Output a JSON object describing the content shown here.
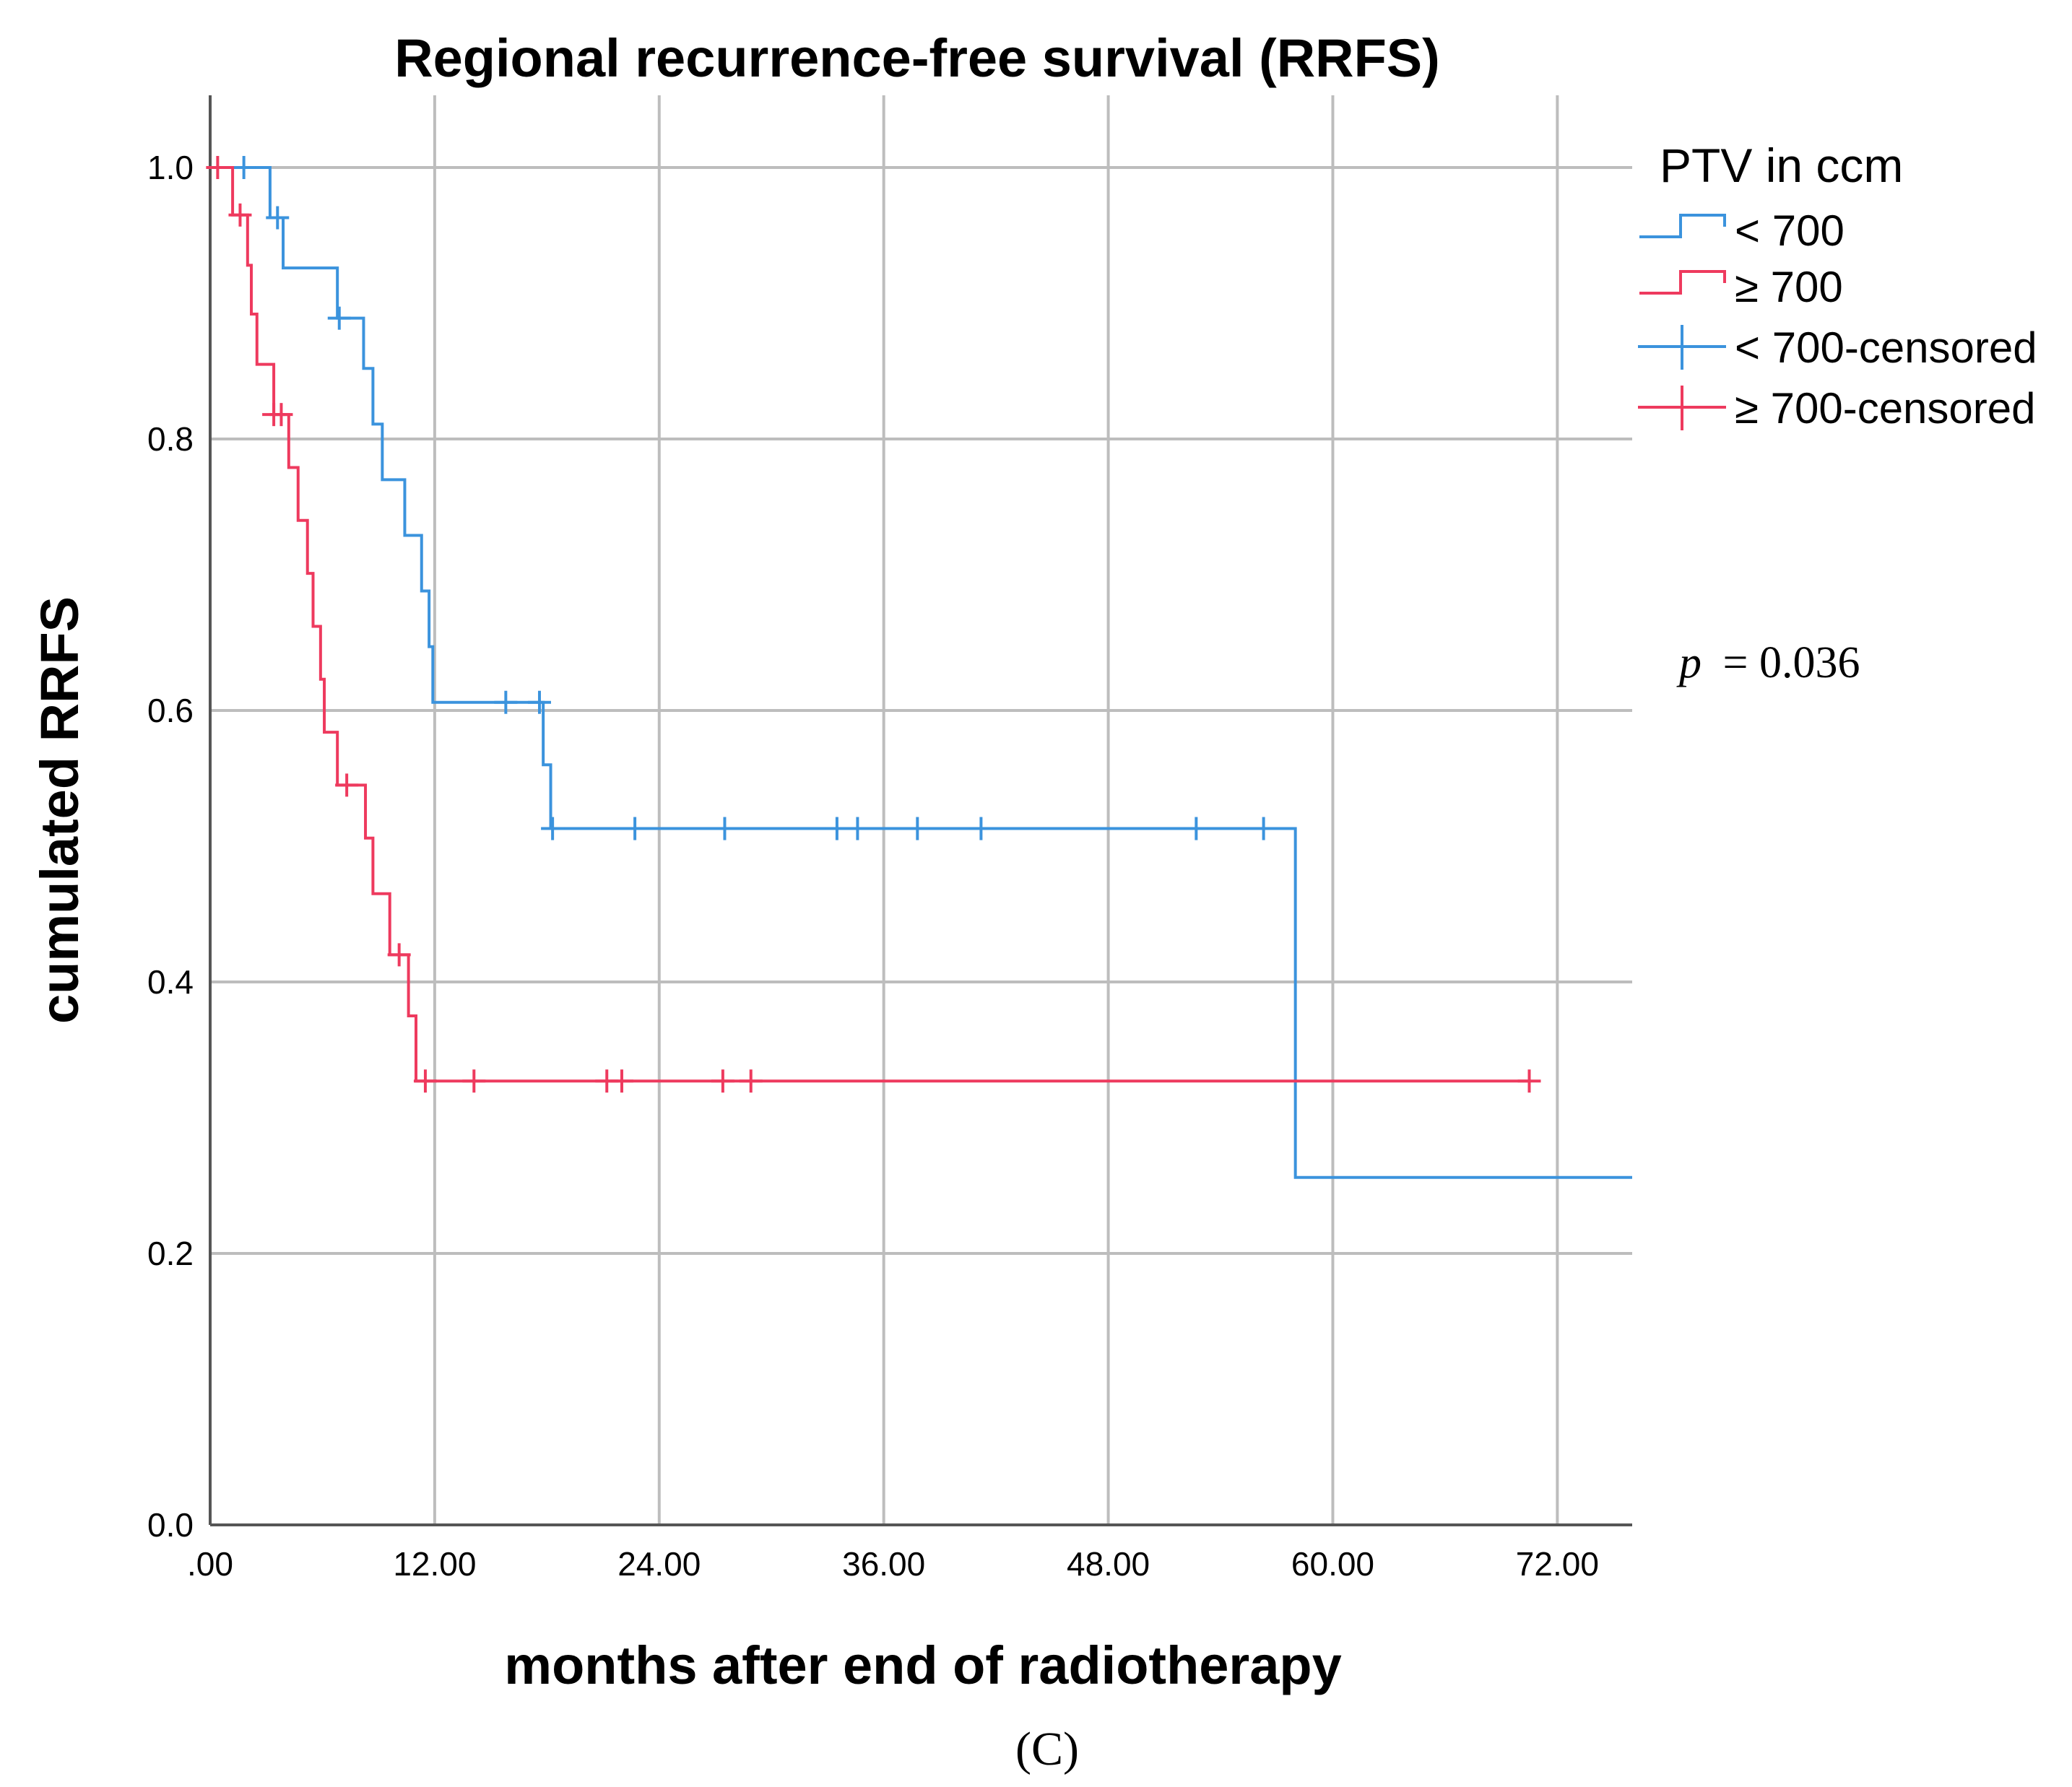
{
  "chart_data": {
    "type": "line",
    "subtype": "kaplan-meier step",
    "title": "Regional recurrence-free survival (RRFS)",
    "xlabel": "months after end of radiotherapy",
    "ylabel": "cumulated RRFS",
    "xlim": [
      0,
      76
    ],
    "ylim": [
      0,
      1.05
    ],
    "x_ticks": [
      0,
      12,
      24,
      36,
      48,
      60,
      72
    ],
    "x_tick_labels": [
      ".00",
      "12.00",
      "24.00",
      "36.00",
      "48.00",
      "60.00",
      "72.00"
    ],
    "y_ticks": [
      0.0,
      0.2,
      0.4,
      0.6,
      0.8,
      1.0
    ],
    "y_tick_labels": [
      "0.0",
      "0.2",
      "0.4",
      "0.6",
      "0.8",
      "1.0"
    ],
    "grid": true,
    "legend_title": "PTV in ccm",
    "legend_position": "right",
    "annotation_p_symbol": "p",
    "annotation_p_value": "= 0.036",
    "panel_label": "(C)",
    "series": [
      {
        "name": "< 700",
        "color": "#3b93dd",
        "steps": [
          [
            0,
            1.0
          ],
          [
            3.2,
            0.963
          ],
          [
            3.9,
            0.926
          ],
          [
            6.8,
            0.889
          ],
          [
            8.2,
            0.852
          ],
          [
            8.7,
            0.811
          ],
          [
            9.2,
            0.77
          ],
          [
            10.4,
            0.729
          ],
          [
            11.3,
            0.688
          ],
          [
            11.7,
            0.647
          ],
          [
            11.9,
            0.606
          ],
          [
            17.8,
            0.56
          ],
          [
            18.2,
            0.513
          ],
          [
            58.0,
            0.256
          ],
          [
            76.0,
            0.256
          ]
        ],
        "censored": [
          [
            1.8,
            1.0
          ],
          [
            3.6,
            0.963
          ],
          [
            6.9,
            0.889
          ],
          [
            15.8,
            0.606
          ],
          [
            17.6,
            0.606
          ],
          [
            18.3,
            0.513
          ],
          [
            22.7,
            0.513
          ],
          [
            27.5,
            0.513
          ],
          [
            33.5,
            0.513
          ],
          [
            34.6,
            0.513
          ],
          [
            37.8,
            0.513
          ],
          [
            41.2,
            0.513
          ],
          [
            52.7,
            0.513
          ],
          [
            56.3,
            0.513
          ]
        ]
      },
      {
        "name": "≥ 700",
        "color": "#ee3a5e",
        "steps": [
          [
            0,
            1.0
          ],
          [
            1.2,
            0.965
          ],
          [
            2.0,
            0.928
          ],
          [
            2.2,
            0.892
          ],
          [
            2.5,
            0.855
          ],
          [
            3.4,
            0.818
          ],
          [
            4.2,
            0.779
          ],
          [
            4.7,
            0.74
          ],
          [
            5.2,
            0.701
          ],
          [
            5.5,
            0.662
          ],
          [
            5.9,
            0.623
          ],
          [
            6.1,
            0.584
          ],
          [
            6.8,
            0.545
          ],
          [
            8.3,
            0.506
          ],
          [
            8.7,
            0.465
          ],
          [
            9.6,
            0.42
          ],
          [
            10.6,
            0.375
          ],
          [
            11.0,
            0.327
          ],
          [
            70.5,
            0.327
          ]
        ],
        "censored": [
          [
            0.4,
            1.0
          ],
          [
            1.6,
            0.965
          ],
          [
            3.4,
            0.818
          ],
          [
            3.8,
            0.818
          ],
          [
            7.3,
            0.545
          ],
          [
            10.1,
            0.42
          ],
          [
            11.5,
            0.327
          ],
          [
            14.1,
            0.327
          ],
          [
            21.2,
            0.327
          ],
          [
            22.0,
            0.327
          ],
          [
            27.4,
            0.327
          ],
          [
            28.9,
            0.327
          ],
          [
            70.5,
            0.327
          ]
        ]
      }
    ],
    "legend_entries": [
      "< 700",
      "≥ 700",
      "< 700-censored",
      "≥ 700-censored"
    ]
  }
}
